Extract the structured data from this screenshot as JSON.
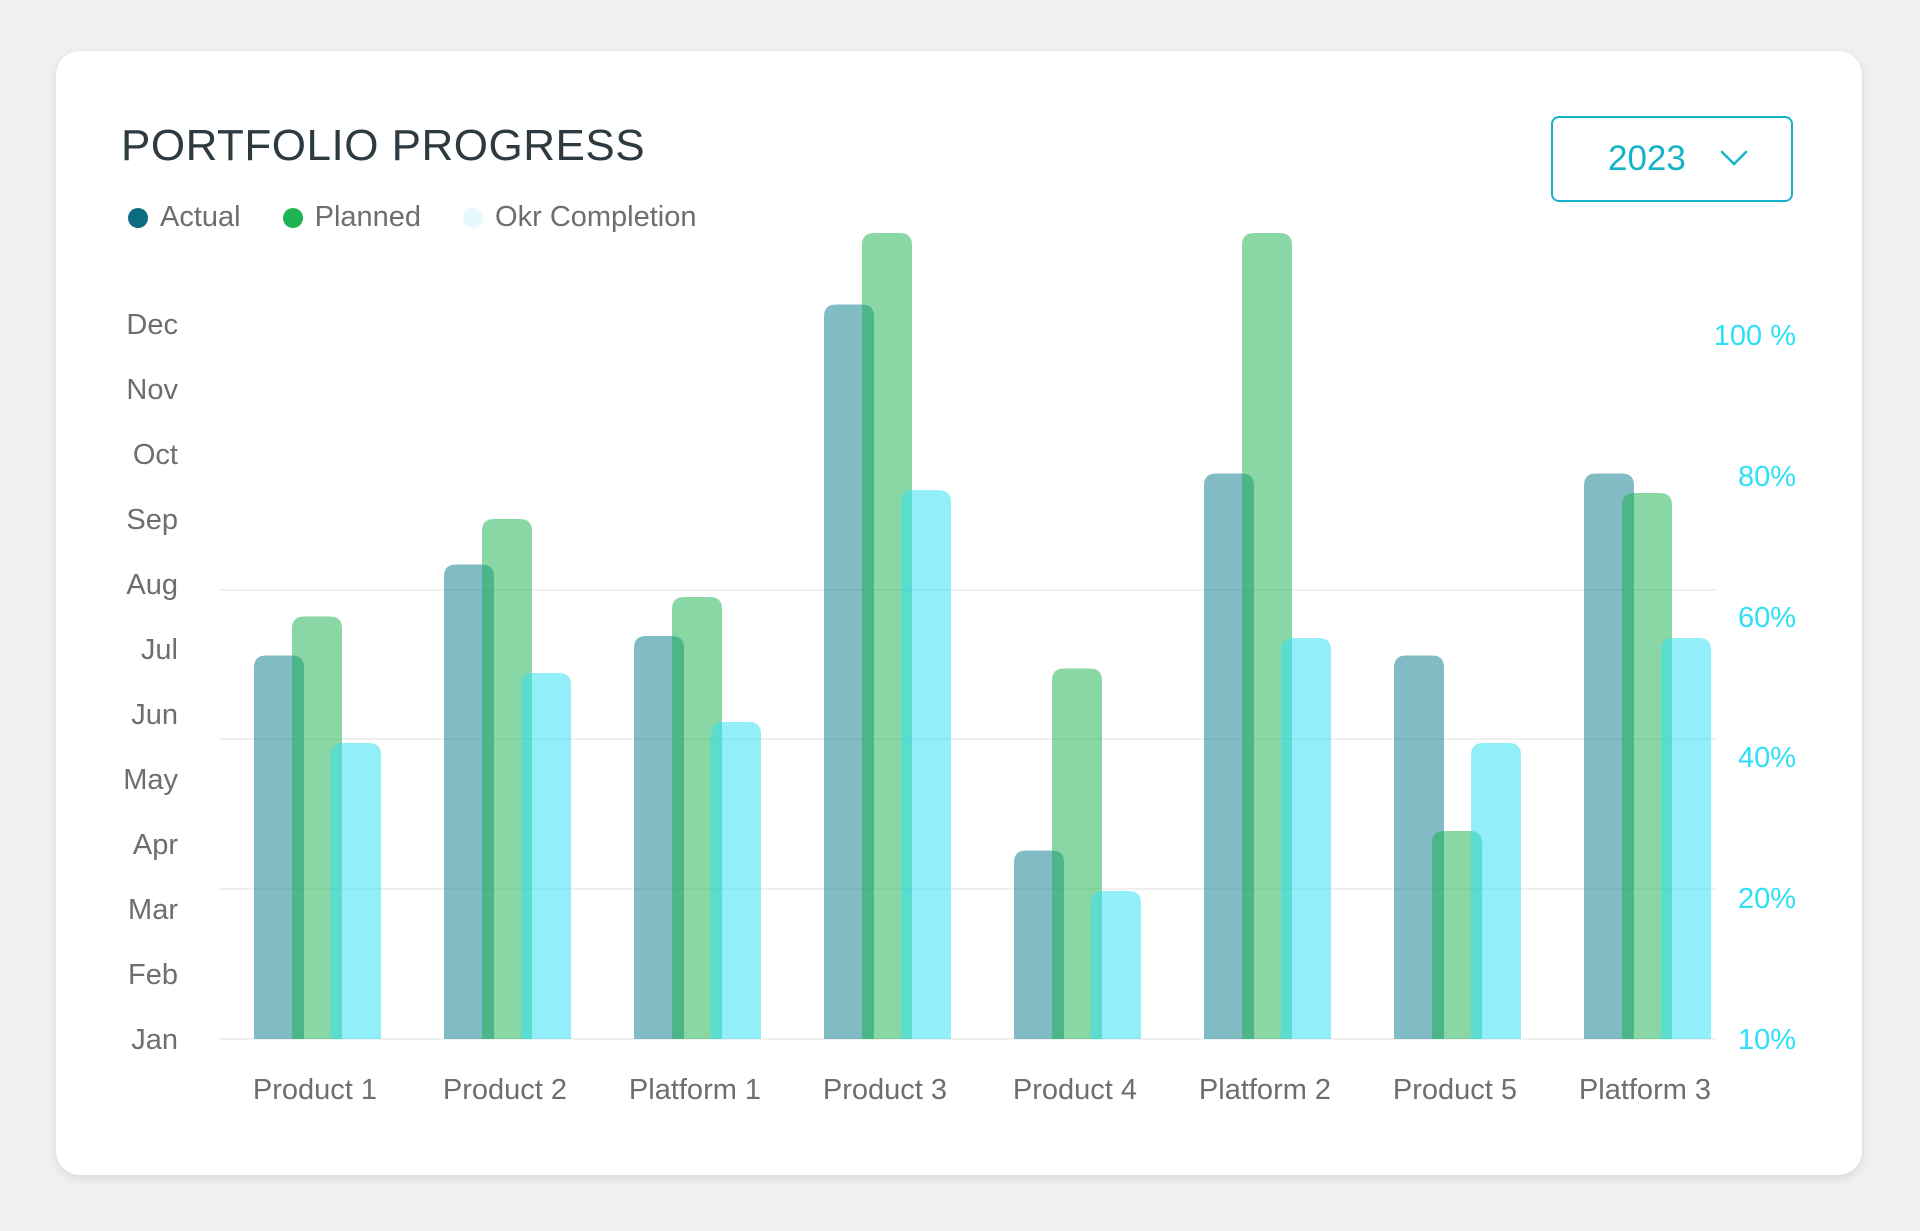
{
  "card": {
    "title": "PORTFOLIO PROGRESS",
    "year_select": {
      "value": "2023",
      "icon": "chevron-down-icon"
    }
  },
  "legend": [
    {
      "label": "Actual",
      "color": "#0f6b82"
    },
    {
      "label": "Planned",
      "color": "#1fb354"
    },
    {
      "label": "Okr Completion",
      "color": "#e6f9fd"
    }
  ],
  "chart_data": {
    "type": "bar",
    "categories": [
      "Product 1",
      "Product 2",
      "Platform 1",
      "Product 3",
      "Product 4",
      "Platform 2",
      "Product 5",
      "Platform 3"
    ],
    "left_axis": {
      "ticks": [
        "Jan",
        "Feb",
        "Mar",
        "Apr",
        "May",
        "Jun",
        "Jul",
        "Aug",
        "Sep",
        "Oct",
        "Nov",
        "Dec"
      ]
    },
    "right_axis": {
      "ticks": [
        "10%",
        "20%",
        "40%",
        "60%",
        "80%",
        "100 %"
      ]
    },
    "series": [
      {
        "name": "Actual",
        "axis": "left",
        "color": "#0d7c8c",
        "opacity": 0.52,
        "values": [
          6.9,
          8.3,
          7.2,
          12.3,
          3.9,
          9.7,
          6.9,
          9.7
        ]
      },
      {
        "name": "Planned",
        "axis": "left",
        "color": "#1fb354",
        "opacity": 0.52,
        "values": [
          7.5,
          9.0,
          7.8,
          13.4,
          6.7,
          13.4,
          4.2,
          9.4
        ]
      },
      {
        "name": "Okr Completion",
        "axis": "right",
        "color": "#2ee0f5",
        "opacity": 0.52,
        "values": [
          42,
          52,
          45,
          78,
          21,
          57,
          42,
          57
        ]
      }
    ],
    "grid": true
  }
}
